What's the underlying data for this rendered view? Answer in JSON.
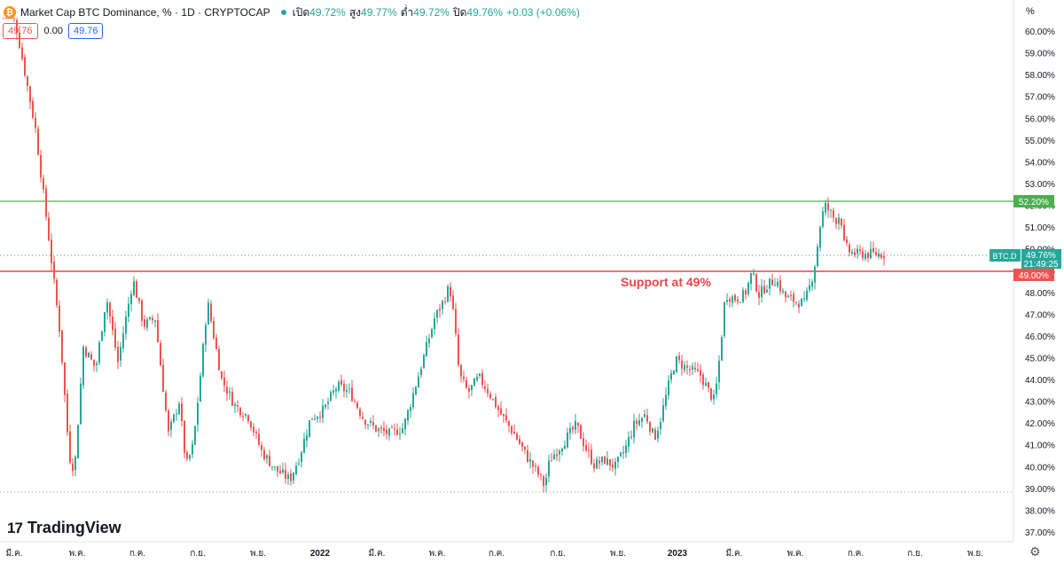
{
  "header": {
    "title": "Market Cap BTC Dominance, % · 1D · CRYPTOCAP",
    "open_label": "เปิด",
    "open_value": "49.72%",
    "high_label": "สูง",
    "high_value": "49.77%",
    "low_label": "ต่ำ",
    "low_value": "49.72%",
    "close_label": "ปิด",
    "close_value": "49.76%",
    "change": "+0.03 (+0.06%)",
    "box_left": "49.76",
    "zero": "0.00",
    "box_right": "49.76"
  },
  "axis_unit": "%",
  "brand": "TradingView",
  "annotation": "Support at 49%",
  "colors": {
    "up": "#26a69a",
    "down": "#ef5350",
    "resistance": "#4caf50",
    "support": "#e8454a"
  },
  "chart_data": {
    "type": "candlestick",
    "title": "Market Cap BTC Dominance, % · 1D · CRYPTOCAP",
    "ylim": [
      36.6,
      60.5
    ],
    "y_ticks": [
      "60.00%",
      "59.00%",
      "58.00%",
      "57.00%",
      "56.00%",
      "55.00%",
      "54.00%",
      "53.00%",
      "52.00%",
      "51.00%",
      "50.00%",
      "49.00%",
      "48.00%",
      "47.00%",
      "46.00%",
      "45.00%",
      "44.00%",
      "43.00%",
      "42.00%",
      "41.00%",
      "40.00%",
      "39.00%",
      "38.00%",
      "37.00%"
    ],
    "x_ticks": [
      "มี.ค.",
      "พ.ค.",
      "ก.ค.",
      "ก.ย.",
      "พ.ย.",
      "2022",
      "มี.ค.",
      "พ.ค.",
      "ก.ค.",
      "ก.ย.",
      "พ.ย.",
      "2023",
      "มี.ค.",
      "พ.ค.",
      "ก.ค.",
      "ก.ย.",
      "พ.ย."
    ],
    "x_tick_bold": [
      false,
      false,
      false,
      false,
      false,
      true,
      false,
      false,
      false,
      false,
      false,
      true,
      false,
      false,
      false,
      false,
      false
    ],
    "horizontal_lines": [
      {
        "name": "resistance",
        "value": 52.2,
        "label": "52.20%",
        "color": "#4caf50"
      },
      {
        "name": "support",
        "value": 49.0,
        "label": "49.00%",
        "color": "#e8454a"
      }
    ],
    "dotted_levels": [
      39.1,
      49.76
    ],
    "last_price_label": {
      "symbol": "BTC.D",
      "value": "49.76%",
      "countdown": "21:49:25"
    },
    "series": [
      {
        "keypoints": [
          [
            0,
            62.0
          ],
          [
            18,
            60.3
          ],
          [
            40,
            55.5
          ],
          [
            55,
            50.5
          ],
          [
            68,
            46.0
          ],
          [
            78,
            40.5
          ],
          [
            84,
            39.8
          ],
          [
            94,
            45.5
          ],
          [
            108,
            44.5
          ],
          [
            120,
            47.8
          ],
          [
            133,
            44.8
          ],
          [
            150,
            48.6
          ],
          [
            162,
            46.5
          ],
          [
            175,
            46.8
          ],
          [
            190,
            41.5
          ],
          [
            202,
            43.0
          ],
          [
            210,
            40.0
          ],
          [
            218,
            41.0
          ],
          [
            228,
            45.0
          ],
          [
            234,
            47.6
          ],
          [
            250,
            44.0
          ],
          [
            265,
            42.8
          ],
          [
            280,
            42.3
          ],
          [
            295,
            40.7
          ],
          [
            310,
            39.9
          ],
          [
            327,
            39.4
          ],
          [
            338,
            40.5
          ],
          [
            350,
            42.2
          ],
          [
            365,
            42.6
          ],
          [
            380,
            43.7
          ],
          [
            395,
            43.4
          ],
          [
            410,
            42.2
          ],
          [
            425,
            41.7
          ],
          [
            440,
            41.5
          ],
          [
            455,
            41.8
          ],
          [
            465,
            43.2
          ],
          [
            477,
            44.9
          ],
          [
            490,
            46.8
          ],
          [
            500,
            47.6
          ],
          [
            507,
            48.3
          ],
          [
            512,
            46.8
          ],
          [
            518,
            44.2
          ],
          [
            528,
            43.4
          ],
          [
            540,
            44.1
          ],
          [
            550,
            43.5
          ],
          [
            565,
            42.4
          ],
          [
            580,
            41.5
          ],
          [
            595,
            40.4
          ],
          [
            608,
            39.6
          ],
          [
            614,
            39.1
          ],
          [
            620,
            40.3
          ],
          [
            635,
            41.1
          ],
          [
            650,
            41.9
          ],
          [
            660,
            40.9
          ],
          [
            670,
            40.1
          ],
          [
            682,
            40.3
          ],
          [
            694,
            40.0
          ],
          [
            705,
            40.8
          ],
          [
            715,
            41.9
          ],
          [
            728,
            42.4
          ],
          [
            738,
            41.3
          ],
          [
            745,
            42.2
          ],
          [
            755,
            43.9
          ],
          [
            762,
            44.9
          ],
          [
            775,
            44.5
          ],
          [
            790,
            44.2
          ],
          [
            800,
            43.4
          ],
          [
            806,
            43.0
          ],
          [
            812,
            45.2
          ],
          [
            818,
            47.9
          ],
          [
            830,
            47.7
          ],
          [
            840,
            47.9
          ],
          [
            848,
            48.9
          ],
          [
            856,
            47.9
          ],
          [
            864,
            48.3
          ],
          [
            875,
            48.6
          ],
          [
            885,
            47.8
          ],
          [
            897,
            47.6
          ],
          [
            907,
            47.5
          ],
          [
            915,
            48.5
          ],
          [
            920,
            49.5
          ],
          [
            925,
            51.1
          ],
          [
            930,
            52.0
          ],
          [
            936,
            51.7
          ],
          [
            942,
            51.3
          ],
          [
            948,
            51.6
          ],
          [
            952,
            50.2
          ],
          [
            957,
            49.9
          ],
          [
            962,
            49.8
          ],
          [
            966,
            49.76
          ]
        ]
      }
    ]
  }
}
